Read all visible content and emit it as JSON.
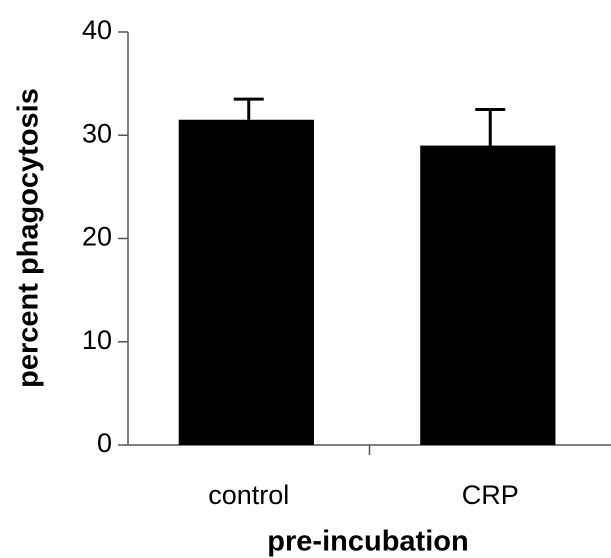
{
  "chart_data": {
    "type": "bar",
    "categories": [
      "control",
      "CRP"
    ],
    "values": [
      31.5,
      29
    ],
    "errors": [
      2,
      3.5
    ],
    "color": "#000000",
    "xlabel": "pre-incubation",
    "ylabel": "percent phagocytosis",
    "ylim": [
      0,
      40
    ],
    "yticks": [
      0,
      10,
      20,
      30,
      40
    ],
    "grid": false
  }
}
